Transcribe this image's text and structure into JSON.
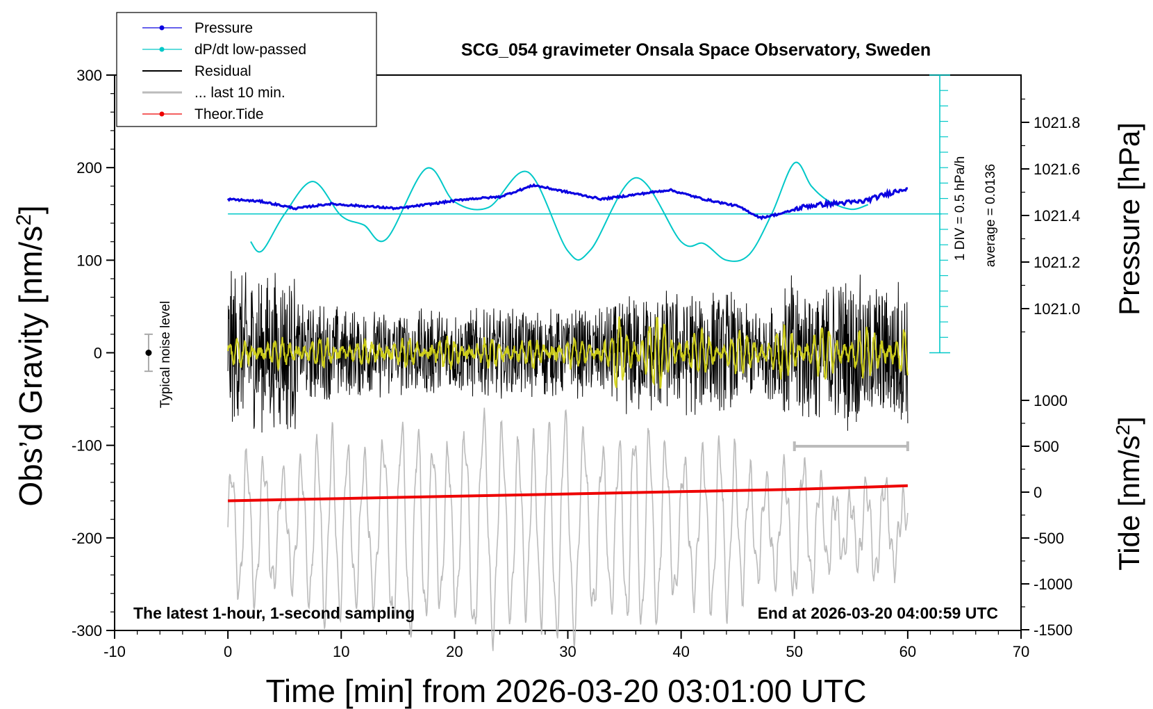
{
  "chart_data": {
    "type": "line",
    "title": "SCG_054 gravimeter Onsala Space Observatory, Sweden",
    "xlabel": "Time [min] from 2026-03-20 03:01:00 UTC",
    "ylabel_left_pre": "Obs’d Gravity [nm/s",
    "ylabel_left_sup": "2",
    "ylabel_left_post": "]",
    "ylabel_right_top": "Pressure [hPa]",
    "ylabel_right_bottom_pre": "Tide [nm/s",
    "ylabel_right_bottom_sup": "2",
    "ylabel_right_bottom_post": "]",
    "xlim": [
      -10,
      70
    ],
    "ylim_left": [
      -300,
      300
    ],
    "ylim_pressure": [
      1020.8,
      1022.0
    ],
    "ylim_tide": [
      -1500,
      1000
    ],
    "xticks": [
      "-10",
      "0",
      "10",
      "20",
      "30",
      "40",
      "50",
      "60",
      "70"
    ],
    "yticks_left": [
      "300",
      "200",
      "100",
      "0",
      "-100",
      "-200",
      "-300"
    ],
    "yticks_pressure": [
      "1021.8",
      "1021.6",
      "1021.4",
      "1021.2",
      "1021.0"
    ],
    "yticks_tide": [
      "1000",
      "500",
      "0",
      "-500",
      "-1000",
      "-1500"
    ],
    "legend": {
      "position": "top-left",
      "entries": [
        "Pressure",
        "dP/dt low-passed",
        "Residual",
        "... last 10 min.",
        "Theor.Tide"
      ]
    },
    "annotations": {
      "noise": "Typical noise level",
      "scale_div": "1 DIV = 0.5 hPa/h",
      "scale_avg": "average = 0.0136",
      "footer_left": "The latest 1-hour, 1-second sampling",
      "footer_right": "End at 2026-03-20 04:00:59 UTC"
    },
    "series": [
      {
        "name": "Pressure",
        "axis": "pressure",
        "x": [
          0,
          3,
          6,
          9,
          12,
          15,
          18,
          21,
          24,
          27,
          30,
          33,
          36,
          39,
          42,
          45,
          47,
          49,
          51,
          53,
          56,
          60
        ],
        "y": [
          1021.47,
          1021.46,
          1021.43,
          1021.45,
          1021.44,
          1021.43,
          1021.45,
          1021.47,
          1021.48,
          1021.53,
          1021.5,
          1021.47,
          1021.49,
          1021.51,
          1021.47,
          1021.44,
          1021.39,
          1021.41,
          1021.44,
          1021.45,
          1021.46,
          1021.52
        ]
      },
      {
        "name": "dP/dt low-passed",
        "axis": "left",
        "x": [
          2,
          3,
          5,
          7.5,
          10,
          12,
          14,
          17.5,
          20,
          23,
          26.5,
          30,
          32,
          36,
          40,
          42,
          44,
          46,
          48,
          50,
          51.5,
          53,
          55,
          56.5
        ],
        "y": [
          120,
          110,
          150,
          185,
          148,
          138,
          123,
          199,
          163,
          157,
          195,
          110,
          111,
          189,
          120,
          118,
          100,
          106,
          150,
          205,
          180,
          164,
          155,
          160
        ]
      },
      {
        "name": "Residual",
        "axis": "left",
        "x": [
          0,
          60
        ],
        "y": [
          0,
          0
        ],
        "amplitude_range": [
          -135,
          130
        ]
      },
      {
        "name": "... last 10 min.",
        "axis": "left",
        "x": [
          0,
          60
        ],
        "y": [
          0,
          0
        ],
        "amplitude_range": [
          -50,
          55
        ]
      },
      {
        "name": "Theor.Tide",
        "axis": "tide",
        "x": [
          0,
          10,
          20,
          30,
          40,
          50,
          60
        ],
        "y": [
          -95,
          -70,
          -45,
          -20,
          5,
          30,
          70
        ]
      },
      {
        "name": "Typical noise level",
        "axis": "left",
        "x": [
          -7
        ],
        "y": [
          0
        ],
        "error": [
          20
        ]
      }
    ],
    "dpdt_baseline_y": 150,
    "tide_bar_x": [
      50,
      60
    ],
    "tide_bar_y": 500,
    "colors": {
      "pressure": "#0a00e0",
      "dpdt": "#00c8c8",
      "residual": "#000000",
      "last10": "#bbbbbb",
      "tide": "#ee0000",
      "highlight": "#d4d41a"
    }
  }
}
